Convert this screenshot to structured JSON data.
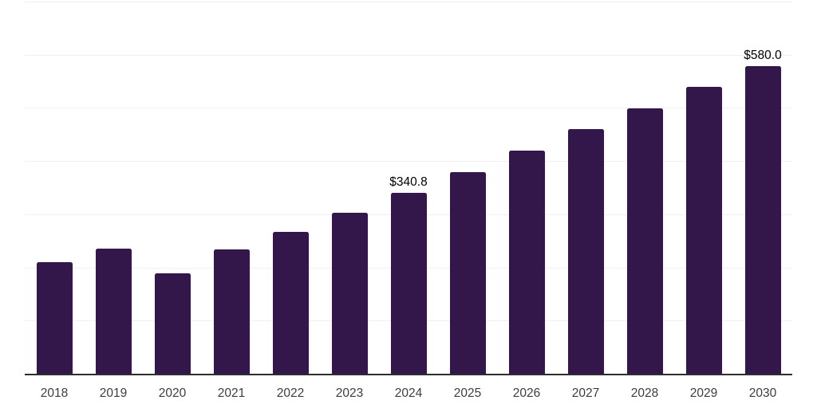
{
  "chart_data": {
    "type": "bar",
    "title": "",
    "xlabel": "",
    "ylabel": "",
    "categories": [
      "2018",
      "2019",
      "2020",
      "2021",
      "2022",
      "2023",
      "2024",
      "2025",
      "2026",
      "2027",
      "2028",
      "2029",
      "2030"
    ],
    "values": [
      210.0,
      236.5,
      190.0,
      234.0,
      267.5,
      304.0,
      340.8,
      380.7,
      420.5,
      460.4,
      500.3,
      540.1,
      580.0
    ],
    "bar_labels": [
      "",
      "",
      "",
      "",
      "",
      "",
      "$340.8",
      "",
      "",
      "",
      "",
      "",
      "$580.0"
    ],
    "ylim": [
      0,
      700
    ],
    "grid_step": 100,
    "grid": "horizontal-only",
    "legend": "none",
    "y_tick_labels_visible": false,
    "colors": {
      "bar": "#33174b",
      "axis_line": "#2e2e2e",
      "gridline": "#f0f0f0",
      "tick_label": "#3d3d3d",
      "data_label": "#000000",
      "background": "#ffffff"
    }
  }
}
